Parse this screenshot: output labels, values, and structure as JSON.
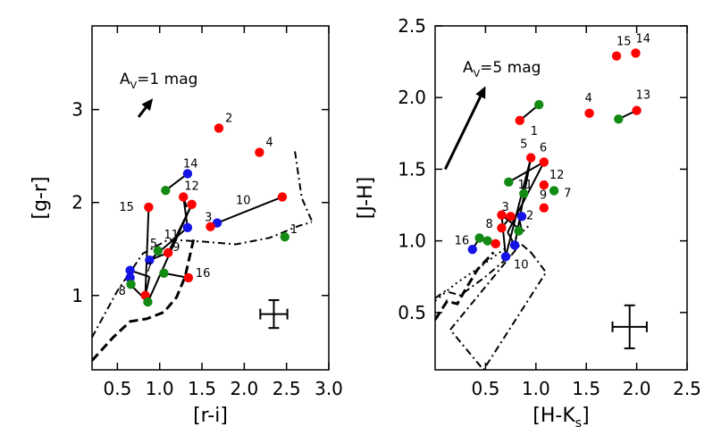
{
  "colors": {
    "red": "#ff0000",
    "green": "#138a13",
    "blue": "#1414e6",
    "black": "#000000"
  },
  "chart_data": [
    {
      "type": "scatter",
      "id": "left",
      "xlabel": "[r-i]",
      "ylabel": "[g-r]",
      "xlim": [
        0.2,
        3.0
      ],
      "ylim": [
        0.2,
        3.9
      ],
      "xticks": [
        0.5,
        1.0,
        1.5,
        2.0,
        2.5,
        3.0
      ],
      "xtick_labels": [
        "0.5",
        "1.0",
        "1.5",
        "2.0",
        "2.5",
        "3.0"
      ],
      "yticks": [
        1,
        2,
        3
      ],
      "ytick_labels": [
        "1",
        "2",
        "3"
      ],
      "reddening_vector": {
        "label": "A",
        "sub": "V",
        "rest": "=1 mag",
        "from": [
          0.75,
          2.92
        ],
        "to": [
          0.92,
          3.12
        ]
      },
      "error_bar": {
        "x": 2.35,
        "y": 0.8,
        "xerr": 0.16,
        "yerr": 0.15
      },
      "curves": [
        {
          "name": "dashdot-track",
          "style": "dashdot",
          "points": [
            [
              0.2,
              0.55
            ],
            [
              0.5,
              1.05
            ],
            [
              0.8,
              1.45
            ],
            [
              1.1,
              1.6
            ],
            [
              1.5,
              1.58
            ],
            [
              1.9,
              1.55
            ],
            [
              2.3,
              1.62
            ],
            [
              2.65,
              1.75
            ],
            [
              2.8,
              1.79
            ]
          ]
        },
        {
          "name": "dashdot-hook",
          "style": "dashdot",
          "points": [
            [
              2.6,
              2.55
            ],
            [
              2.68,
              2.05
            ],
            [
              2.8,
              1.8
            ]
          ]
        },
        {
          "name": "dashed-track",
          "style": "dashed",
          "points": [
            [
              0.2,
              0.3
            ],
            [
              0.45,
              0.55
            ],
            [
              0.65,
              0.72
            ],
            [
              0.85,
              0.75
            ],
            [
              1.05,
              0.82
            ],
            [
              1.2,
              0.98
            ],
            [
              1.3,
              1.2
            ],
            [
              1.4,
              1.6
            ]
          ]
        }
      ],
      "links": [
        [
          [
            0.87,
            1.95
          ],
          [
            0.83,
            1.0
          ]
        ],
        [
          [
            0.83,
            1.0
          ],
          [
            0.88,
            1.2
          ]
        ],
        [
          [
            0.88,
            1.2
          ],
          [
            0.65,
            1.27
          ]
        ],
        [
          [
            0.65,
            1.19
          ],
          [
            0.65,
            1.27
          ]
        ],
        [
          [
            0.65,
            1.12
          ],
          [
            0.65,
            1.2
          ]
        ],
        [
          [
            0.65,
            1.12
          ],
          [
            0.86,
            0.93
          ]
        ],
        [
          [
            0.86,
            0.93
          ],
          [
            1.38,
            1.98
          ]
        ],
        [
          [
            1.38,
            1.98
          ],
          [
            1.1,
            1.46
          ]
        ],
        [
          [
            1.1,
            1.46
          ],
          [
            0.88,
            1.38
          ]
        ],
        [
          [
            0.88,
            1.38
          ],
          [
            1.33,
            1.73
          ]
        ],
        [
          [
            1.33,
            1.73
          ],
          [
            1.28,
            2.06
          ]
        ],
        [
          [
            1.28,
            2.06
          ],
          [
            1.32,
            1.95
          ]
        ],
        [
          [
            1.07,
            2.13
          ],
          [
            1.33,
            2.31
          ]
        ],
        [
          [
            1.05,
            1.24
          ],
          [
            1.34,
            1.19
          ]
        ],
        [
          [
            1.6,
            1.74
          ],
          [
            1.68,
            1.78
          ]
        ],
        [
          [
            1.68,
            1.78
          ],
          [
            2.45,
            2.06
          ]
        ]
      ],
      "points": [
        {
          "label": "2",
          "x": 1.7,
          "y": 2.8,
          "color": "red",
          "label_dx": 7,
          "label_dy": -7
        },
        {
          "label": "4",
          "x": 2.18,
          "y": 2.54,
          "color": "red",
          "label_dx": 7,
          "label_dy": -7
        },
        {
          "label": "14",
          "x": 1.33,
          "y": 2.31,
          "color": "blue",
          "label_dx": -5,
          "label_dy": -7
        },
        {
          "label": "",
          "x": 1.07,
          "y": 2.13,
          "color": "green",
          "label_dx": 0,
          "label_dy": 0
        },
        {
          "label": "12",
          "x": 1.28,
          "y": 2.06,
          "color": "red",
          "label_dx": 1,
          "label_dy": -8
        },
        {
          "label": "",
          "x": 1.38,
          "y": 1.98,
          "color": "red",
          "label_dx": 0,
          "label_dy": 0
        },
        {
          "label": "15",
          "x": 0.87,
          "y": 1.95,
          "color": "red",
          "label_dx": -33,
          "label_dy": 4
        },
        {
          "label": "10",
          "x": 2.45,
          "y": 2.06,
          "color": "red",
          "label_dx": -52,
          "label_dy": 8
        },
        {
          "label": "",
          "x": 1.33,
          "y": 1.73,
          "color": "blue",
          "label_dx": 0,
          "label_dy": 0
        },
        {
          "label": "11",
          "x": 1.05,
          "y": 1.66,
          "color": "none",
          "label_dx": 0,
          "label_dy": 5
        },
        {
          "label": "3",
          "x": 1.68,
          "y": 1.78,
          "color": "blue",
          "label_dx": -14,
          "label_dy": -2
        },
        {
          "label": "",
          "x": 1.6,
          "y": 1.74,
          "color": "red",
          "label_dx": 0,
          "label_dy": 0
        },
        {
          "label": "1",
          "x": 2.48,
          "y": 1.63,
          "color": "green",
          "label_dx": 6,
          "label_dy": -4
        },
        {
          "label": "5",
          "x": 0.98,
          "y": 1.48,
          "color": "green",
          "label_dx": -9,
          "label_dy": -4
        },
        {
          "label": "9",
          "x": 1.1,
          "y": 1.46,
          "color": "red",
          "label_dx": 5,
          "label_dy": -2
        },
        {
          "label": "",
          "x": 0.88,
          "y": 1.38,
          "color": "blue",
          "label_dx": 0,
          "label_dy": 0
        },
        {
          "label": "",
          "x": 0.65,
          "y": 1.27,
          "color": "blue",
          "label_dx": 0,
          "label_dy": 0
        },
        {
          "label": "",
          "x": 0.65,
          "y": 1.19,
          "color": "blue",
          "label_dx": 0,
          "label_dy": 0
        },
        {
          "label": "16",
          "x": 1.34,
          "y": 1.19,
          "color": "red",
          "label_dx": 8,
          "label_dy": -1
        },
        {
          "label": "",
          "x": 1.05,
          "y": 1.24,
          "color": "green",
          "label_dx": 0,
          "label_dy": 0
        },
        {
          "label": "",
          "x": 0.66,
          "y": 1.12,
          "color": "green",
          "label_dx": 0,
          "label_dy": 0
        },
        {
          "label": "7",
          "x": 0.88,
          "y": 1.2,
          "color": "none",
          "label_dx": -5,
          "label_dy": -6
        },
        {
          "label": "8",
          "x": 0.83,
          "y": 1.0,
          "color": "red",
          "label_dx": -30,
          "label_dy": -1
        },
        {
          "label": "",
          "x": 0.86,
          "y": 0.93,
          "color": "green",
          "label_dx": 0,
          "label_dy": 0
        }
      ]
    },
    {
      "type": "scatter",
      "id": "right",
      "xlabel": "[H-K",
      "xlabel_sub": "s",
      "xlabel_end": "]",
      "ylabel": "[J-H]",
      "xlim": [
        0.0,
        2.5
      ],
      "ylim": [
        0.1,
        2.5
      ],
      "xticks": [
        0.5,
        1.0,
        1.5,
        2.0,
        2.5
      ],
      "xtick_labels": [
        "0.5",
        "1.0",
        "1.5",
        "2.0",
        "2.5"
      ],
      "yticks": [
        0.5,
        1.0,
        1.5,
        2.0,
        2.5
      ],
      "ytick_labels": [
        "0.5",
        "1.0",
        "1.5",
        "2.0",
        "2.5"
      ],
      "reddening_vector": {
        "label": "A",
        "sub": "V",
        "rest": "=5 mag",
        "from": [
          0.1,
          1.5
        ],
        "to": [
          0.5,
          2.08
        ]
      },
      "error_bar": {
        "x": 1.93,
        "y": 0.4,
        "xerr": 0.17,
        "yerr": 0.15
      },
      "curves": [
        {
          "name": "dashdot-box",
          "style": "dashdot",
          "points": [
            [
              0.95,
              0.92
            ],
            [
              1.1,
              0.78
            ],
            [
              0.48,
              0.1
            ],
            [
              0.15,
              0.38
            ],
            [
              0.85,
              0.98
            ],
            [
              0.95,
              0.92
            ]
          ]
        },
        {
          "name": "dotted-track",
          "style": "dotted",
          "points": [
            [
              0.0,
              0.58
            ],
            [
              0.2,
              0.7
            ],
            [
              0.45,
              0.82
            ],
            [
              0.7,
              0.95
            ],
            [
              0.95,
              1.12
            ]
          ]
        },
        {
          "name": "dashdot-inner",
          "style": "dashdot",
          "points": [
            [
              0.0,
              0.6
            ],
            [
              0.1,
              0.65
            ],
            [
              0.25,
              0.62
            ],
            [
              0.5,
              0.75
            ],
            [
              0.75,
              0.9
            ]
          ]
        },
        {
          "name": "dashed-track",
          "style": "dashed",
          "points": [
            [
              0.0,
              0.45
            ],
            [
              0.12,
              0.58
            ],
            [
              0.22,
              0.56
            ],
            [
              0.3,
              0.66
            ],
            [
              0.42,
              0.8
            ],
            [
              0.58,
              0.92
            ]
          ]
        }
      ],
      "links": [
        [
          [
            0.84,
            1.84
          ],
          [
            1.03,
            1.95
          ]
        ],
        [
          [
            1.82,
            1.85
          ],
          [
            2.0,
            1.91
          ]
        ],
        [
          [
            0.73,
            1.41
          ],
          [
            1.08,
            1.55
          ]
        ],
        [
          [
            1.08,
            1.55
          ],
          [
            0.72,
            1.06
          ]
        ],
        [
          [
            0.72,
            1.06
          ],
          [
            0.79,
            0.97
          ]
        ],
        [
          [
            0.79,
            0.97
          ],
          [
            0.95,
            1.58
          ]
        ],
        [
          [
            0.95,
            1.58
          ],
          [
            0.7,
            0.89
          ]
        ],
        [
          [
            0.7,
            0.89
          ],
          [
            0.66,
            1.18
          ]
        ],
        [
          [
            0.66,
            1.18
          ],
          [
            0.86,
            1.07
          ]
        ],
        [
          [
            0.86,
            1.07
          ],
          [
            0.83,
            1.17
          ]
        ],
        [
          [
            0.66,
            1.09
          ],
          [
            0.75,
            1.17
          ]
        ],
        [
          [
            0.44,
            1.02
          ],
          [
            0.52,
            1.0
          ]
        ],
        [
          [
            0.37,
            0.94
          ],
          [
            0.44,
            1.02
          ]
        ]
      ],
      "points": [
        {
          "label": "15",
          "x": 1.8,
          "y": 2.29,
          "color": "red",
          "label_dx": 0,
          "label_dy": -12
        },
        {
          "label": "14",
          "x": 1.99,
          "y": 2.31,
          "color": "red",
          "label_dx": 0,
          "label_dy": -12
        },
        {
          "label": "",
          "x": 1.03,
          "y": 1.95,
          "color": "green",
          "label_dx": 0,
          "label_dy": 0
        },
        {
          "label": "1",
          "x": 0.84,
          "y": 1.84,
          "color": "red",
          "label_dx": 12,
          "label_dy": 16
        },
        {
          "label": "4",
          "x": 1.53,
          "y": 1.89,
          "color": "red",
          "label_dx": -5,
          "label_dy": -13
        },
        {
          "label": "13",
          "x": 2.0,
          "y": 1.91,
          "color": "red",
          "label_dx": -1,
          "label_dy": -13
        },
        {
          "label": "",
          "x": 1.82,
          "y": 1.85,
          "color": "green",
          "label_dx": 0,
          "label_dy": 0
        },
        {
          "label": "5",
          "x": 0.95,
          "y": 1.58,
          "color": "red",
          "label_dx": -12,
          "label_dy": -11
        },
        {
          "label": "6",
          "x": 1.08,
          "y": 1.55,
          "color": "red",
          "label_dx": -5,
          "label_dy": -12
        },
        {
          "label": "12",
          "x": 1.08,
          "y": 1.39,
          "color": "red",
          "label_dx": 6,
          "label_dy": -7
        },
        {
          "label": "",
          "x": 0.73,
          "y": 1.41,
          "color": "green",
          "label_dx": 0,
          "label_dy": 0
        },
        {
          "label": "11",
          "x": 0.82,
          "y": 1.39,
          "color": "none",
          "label_dx": 0,
          "label_dy": 4
        },
        {
          "label": "7",
          "x": 1.18,
          "y": 1.35,
          "color": "green",
          "label_dx": 11,
          "label_dy": 7
        },
        {
          "label": "",
          "x": 0.88,
          "y": 1.33,
          "color": "green",
          "label_dx": 0,
          "label_dy": 0
        },
        {
          "label": "9",
          "x": 1.08,
          "y": 1.23,
          "color": "red",
          "label_dx": -5,
          "label_dy": -10
        },
        {
          "label": "3",
          "x": 0.66,
          "y": 1.18,
          "color": "red",
          "label_dx": 0,
          "label_dy": -5
        },
        {
          "label": "2",
          "x": 0.86,
          "y": 1.17,
          "color": "blue",
          "label_dx": 5,
          "label_dy": 3
        },
        {
          "label": "",
          "x": 0.75,
          "y": 1.17,
          "color": "red",
          "label_dx": 0,
          "label_dy": 0
        },
        {
          "label": "8",
          "x": 0.66,
          "y": 1.09,
          "color": "red",
          "label_dx": -18,
          "label_dy": 0
        },
        {
          "label": "",
          "x": 0.83,
          "y": 1.07,
          "color": "green",
          "label_dx": 0,
          "label_dy": 0
        },
        {
          "label": "16",
          "x": 0.44,
          "y": 1.02,
          "color": "green",
          "label_dx": -28,
          "label_dy": 7
        },
        {
          "label": "",
          "x": 0.52,
          "y": 1.0,
          "color": "green",
          "label_dx": 0,
          "label_dy": 0
        },
        {
          "label": "",
          "x": 0.6,
          "y": 0.98,
          "color": "red",
          "label_dx": 0,
          "label_dy": 0
        },
        {
          "label": "",
          "x": 0.79,
          "y": 0.97,
          "color": "blue",
          "label_dx": 0,
          "label_dy": 0
        },
        {
          "label": "",
          "x": 0.37,
          "y": 0.94,
          "color": "blue",
          "label_dx": 0,
          "label_dy": 0
        },
        {
          "label": "10",
          "x": 0.7,
          "y": 0.89,
          "color": "blue",
          "label_dx": 9,
          "label_dy": 13
        }
      ]
    }
  ]
}
